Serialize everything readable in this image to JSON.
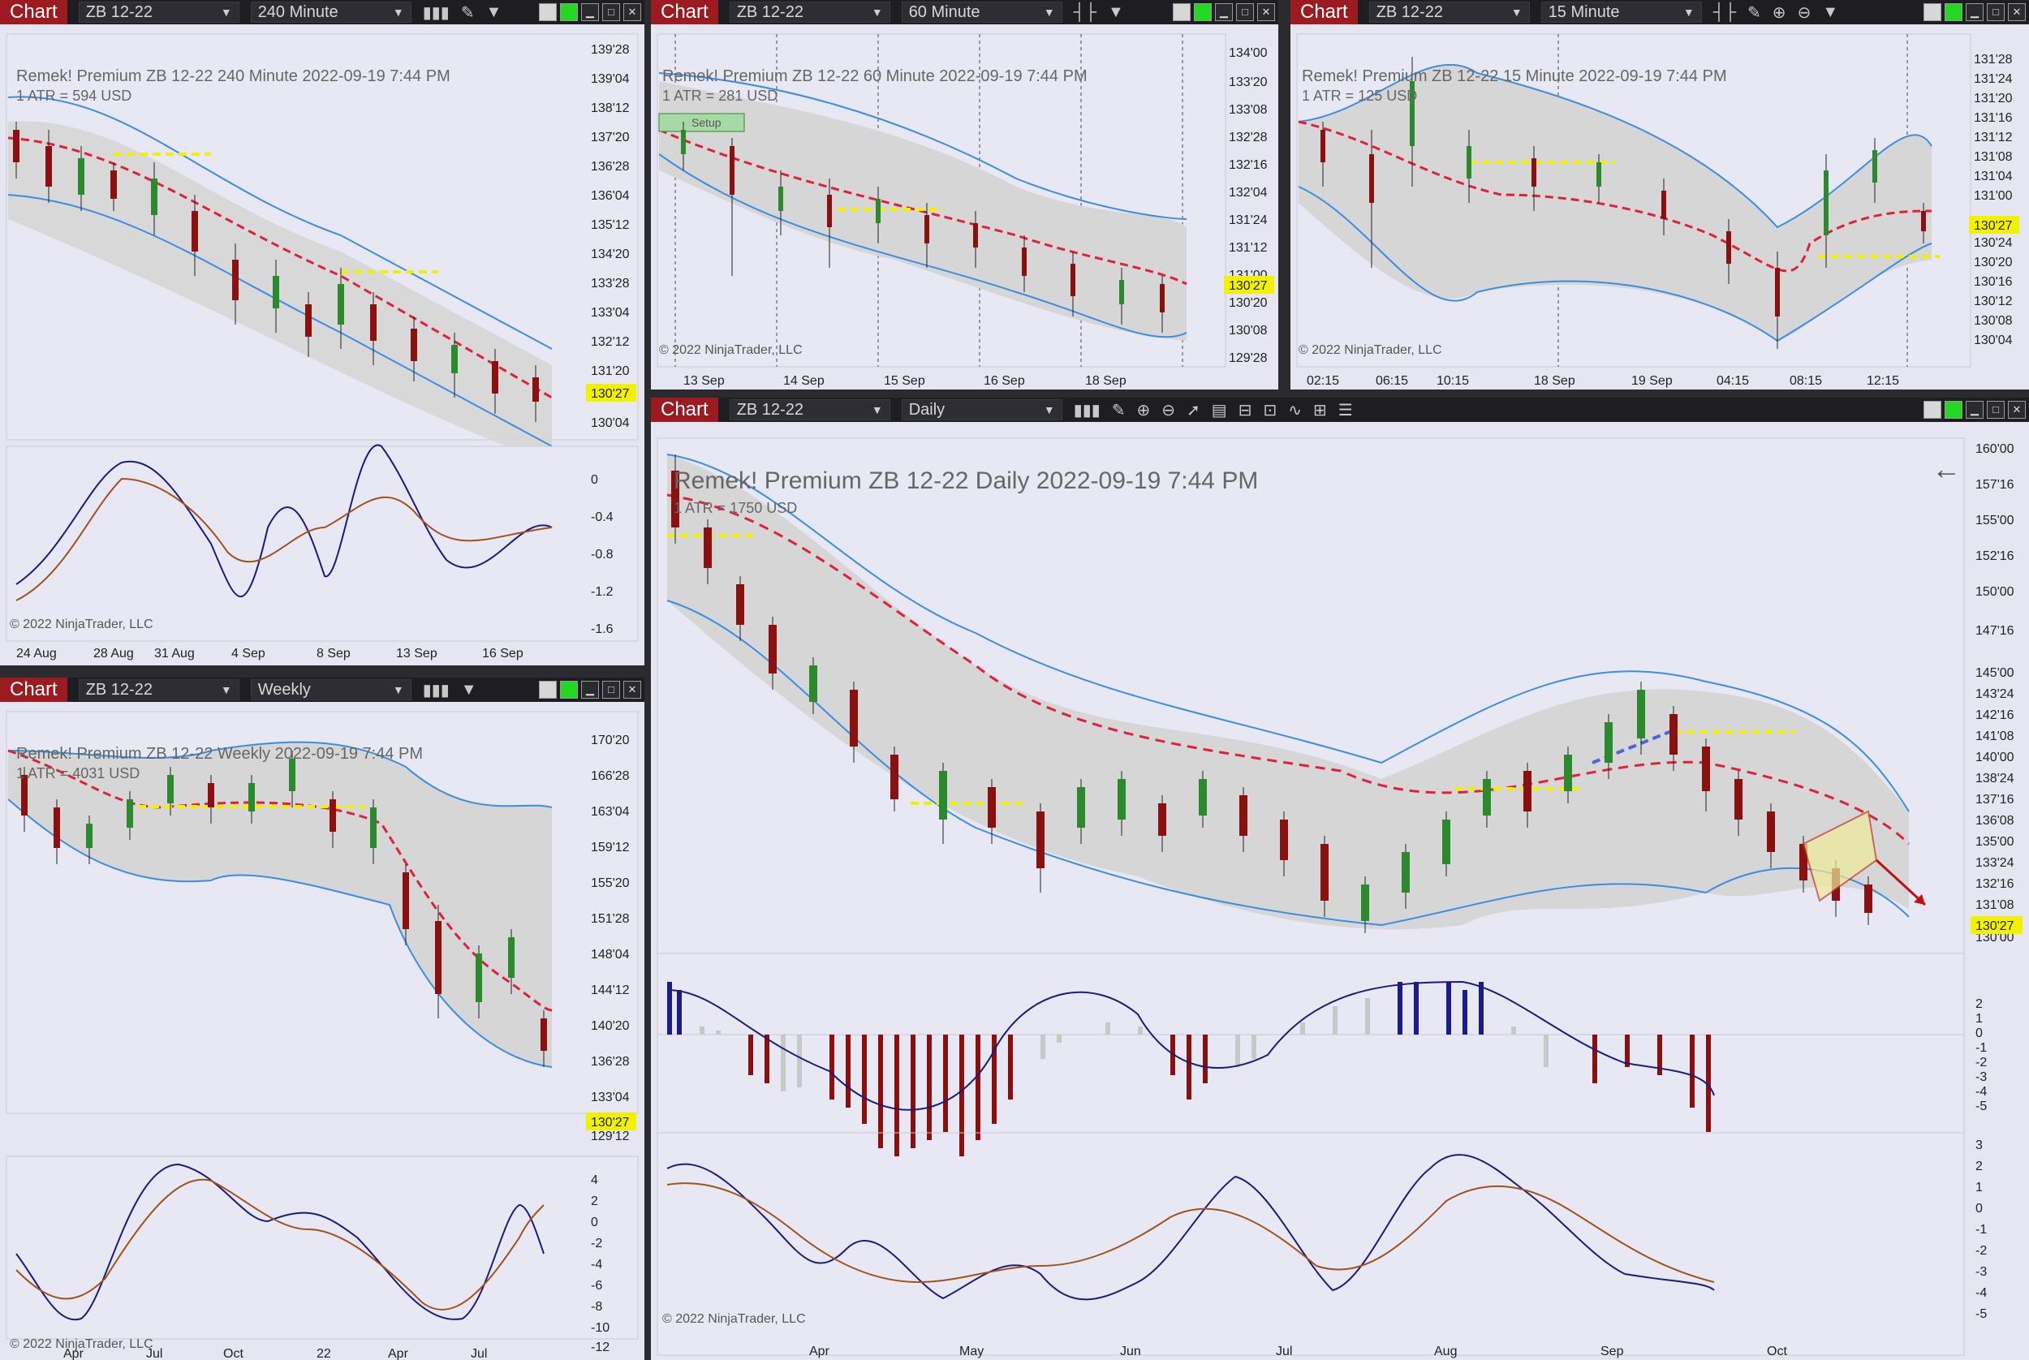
{
  "common": {
    "chart_tab": "Chart",
    "instrument": "ZB 12-22",
    "copyright": "© 2022 NinjaTrader, LLC",
    "price_badge": "130'27",
    "brand": "Remek!  Premium"
  },
  "w240": {
    "interval": "240 Minute",
    "title": "ZB 12-22  240 Minute  2022-09-19 7:44 PM",
    "atr": "1 ATR = 594 USD",
    "yticks": [
      "139'28",
      "139'04",
      "138'12",
      "137'20",
      "136'28",
      "136'04",
      "135'12",
      "134'20",
      "133'28",
      "133'04",
      "132'12",
      "131'20",
      "130'04"
    ],
    "osc_ticks": [
      "0",
      "-0.4",
      "-0.8",
      "-1.2",
      "-1.6"
    ],
    "xticks": [
      "24 Aug",
      "28 Aug",
      "31 Aug",
      "4 Sep",
      "8 Sep",
      "13 Sep",
      "16 Sep"
    ]
  },
  "w60": {
    "interval": "60 Minute",
    "title": "ZB 12-22  60 Minute  2022-09-19 7:44 PM",
    "atr": "1 ATR = 281 USD",
    "setup": "Setup",
    "yticks": [
      "134'00",
      "133'20",
      "133'08",
      "132'28",
      "132'16",
      "132'04",
      "131'24",
      "131'12",
      "131'00",
      "130'20",
      "130'08",
      "129'28"
    ],
    "xticks": [
      "13 Sep",
      "14 Sep",
      "15 Sep",
      "16 Sep",
      "18 Sep"
    ]
  },
  "w15": {
    "interval": "15 Minute",
    "title": "ZB 12-22  15 Minute  2022-09-19 7:44 PM",
    "atr": "1 ATR = 125 USD",
    "yticks": [
      "131'28",
      "131'24",
      "131'20",
      "131'16",
      "131'12",
      "131'08",
      "131'04",
      "131'00",
      "130'24",
      "130'20",
      "130'16",
      "130'12",
      "130'08",
      "130'04"
    ],
    "xticks": [
      "02:15",
      "06:15",
      "10:15",
      "18 Sep",
      "19 Sep",
      "04:15",
      "08:15",
      "12:15"
    ]
  },
  "wWeekly": {
    "interval": "Weekly",
    "title": "ZB 12-22  Weekly  2022-09-19 7:44 PM",
    "atr": "1 ATR = 4031 USD",
    "yticks": [
      "170'20",
      "166'28",
      "163'04",
      "159'12",
      "155'20",
      "151'28",
      "148'04",
      "144'12",
      "140'20",
      "136'28",
      "133'04",
      "129'12"
    ],
    "osc_ticks": [
      "4",
      "2",
      "0",
      "-2",
      "-4",
      "-6",
      "-8",
      "-10",
      "-12"
    ],
    "xticks": [
      "Apr",
      "Jul",
      "Oct",
      "22",
      "Apr",
      "Jul"
    ]
  },
  "wDaily": {
    "interval": "Daily",
    "title": "ZB 12-22  Daily  2022-09-19 7:44 PM",
    "atr": "1 ATR = 1750 USD",
    "badge": "130'27",
    "yticks": [
      "160'00",
      "157'16",
      "155'00",
      "152'16",
      "150'00",
      "147'16",
      "145'00",
      "143'24",
      "142'16",
      "141'08",
      "140'00",
      "138'24",
      "137'16",
      "136'08",
      "135'00",
      "133'24",
      "132'16",
      "131'08",
      "130'00"
    ],
    "hist_ticks": [
      "2",
      "1",
      "0",
      "-1",
      "-2",
      "-3",
      "-4",
      "-5"
    ],
    "osc_ticks": [
      "3",
      "2",
      "1",
      "0",
      "-1",
      "-2",
      "-3",
      "-4",
      "-5"
    ],
    "xticks": [
      "Apr",
      "May",
      "Jun",
      "Jul",
      "Aug",
      "Sep",
      "Oct"
    ]
  },
  "colors": {
    "bull": "#2b8a2b",
    "bear": "#8b1010",
    "band": "#3b8de0",
    "trend": "#e0203a",
    "yellow": "#f0f000",
    "hist_red": "#8a0f0f",
    "hist_blue": "#1b1b8a",
    "hist_gray": "#c8c8c8",
    "osc_fast": "#1b1b7a",
    "osc_slow": "#a0521b",
    "badge": "#f2f200"
  }
}
